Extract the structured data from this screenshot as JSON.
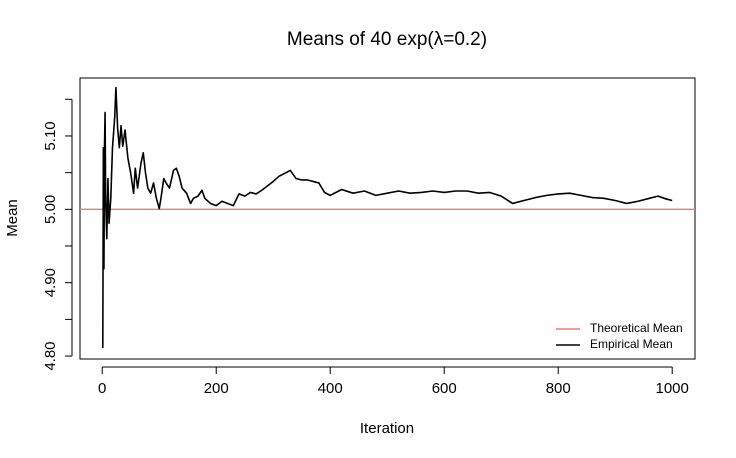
{
  "chart_data": {
    "type": "line",
    "title": "Means of 40 exp(λ=0.2)",
    "xlabel": "Iteration",
    "ylabel": "Mean",
    "x": [
      1,
      2,
      3,
      4,
      5,
      6,
      8,
      10,
      12,
      15,
      18,
      22,
      24,
      27,
      30,
      33,
      36,
      40,
      45,
      50,
      55,
      58,
      62,
      68,
      72,
      76,
      80,
      85,
      90,
      95,
      100,
      103,
      108,
      112,
      118,
      125,
      130,
      135,
      140,
      148,
      155,
      160,
      168,
      175,
      180,
      190,
      200,
      210,
      220,
      230,
      240,
      250,
      260,
      270,
      280,
      290,
      300,
      310,
      320,
      330,
      340,
      350,
      360,
      370,
      380,
      390,
      400,
      420,
      440,
      460,
      480,
      500,
      520,
      540,
      560,
      580,
      600,
      620,
      640,
      660,
      680,
      700,
      720,
      740,
      760,
      780,
      800,
      820,
      840,
      860,
      880,
      900,
      920,
      940,
      960,
      975,
      990,
      1000
    ],
    "series": [
      {
        "name": "Theoretical Mean",
        "color": "#f8766d",
        "hline": 5
      },
      {
        "name": "Empirical Mean",
        "color": "#000000",
        "values": [
          4.811,
          5.084,
          4.919,
          5.086,
          5.132,
          5.015,
          4.96,
          5.042,
          4.981,
          5.015,
          5.084,
          5.127,
          5.166,
          5.111,
          5.084,
          5.114,
          5.086,
          5.108,
          5.07,
          5.049,
          5.022,
          5.056,
          5.029,
          5.063,
          5.077,
          5.049,
          5.029,
          5.022,
          5.036,
          5.015,
          5.001,
          5.015,
          5.042,
          5.036,
          5.029,
          5.053,
          5.056,
          5.045,
          5.029,
          5.022,
          5.008,
          5.015,
          5.018,
          5.026,
          5.015,
          5.008,
          5.005,
          5.011,
          5.008,
          5.005,
          5.021,
          5.018,
          5.023,
          5.021,
          5.026,
          5.032,
          5.038,
          5.045,
          5.049,
          5.053,
          5.042,
          5.04,
          5.04,
          5.038,
          5.036,
          5.023,
          5.019,
          5.027,
          5.022,
          5.025,
          5.019,
          5.022,
          5.025,
          5.022,
          5.023,
          5.025,
          5.023,
          5.025,
          5.025,
          5.022,
          5.023,
          5.018,
          5.008,
          5.012,
          5.016,
          5.019,
          5.021,
          5.022,
          5.019,
          5.016,
          5.015,
          5.012,
          5.008,
          5.011,
          5.015,
          5.018,
          5.014,
          5.012
        ]
      }
    ],
    "xlim": [
      -39,
      1040
    ],
    "xticks": [
      0,
      200,
      400,
      600,
      800,
      1000
    ],
    "ylim": [
      4.796,
      5.179
    ],
    "yticks": [
      {
        "value": 4.8,
        "label": "4.80"
      },
      {
        "value": 4.9,
        "label": "4.90"
      },
      {
        "value": 5,
        "label": "5.00"
      },
      {
        "value": 5.1,
        "label": "5.10"
      }
    ],
    "yminorticks": [
      4.85,
      4.95,
      5.05,
      5.15
    ],
    "legend": "bottom-right"
  }
}
